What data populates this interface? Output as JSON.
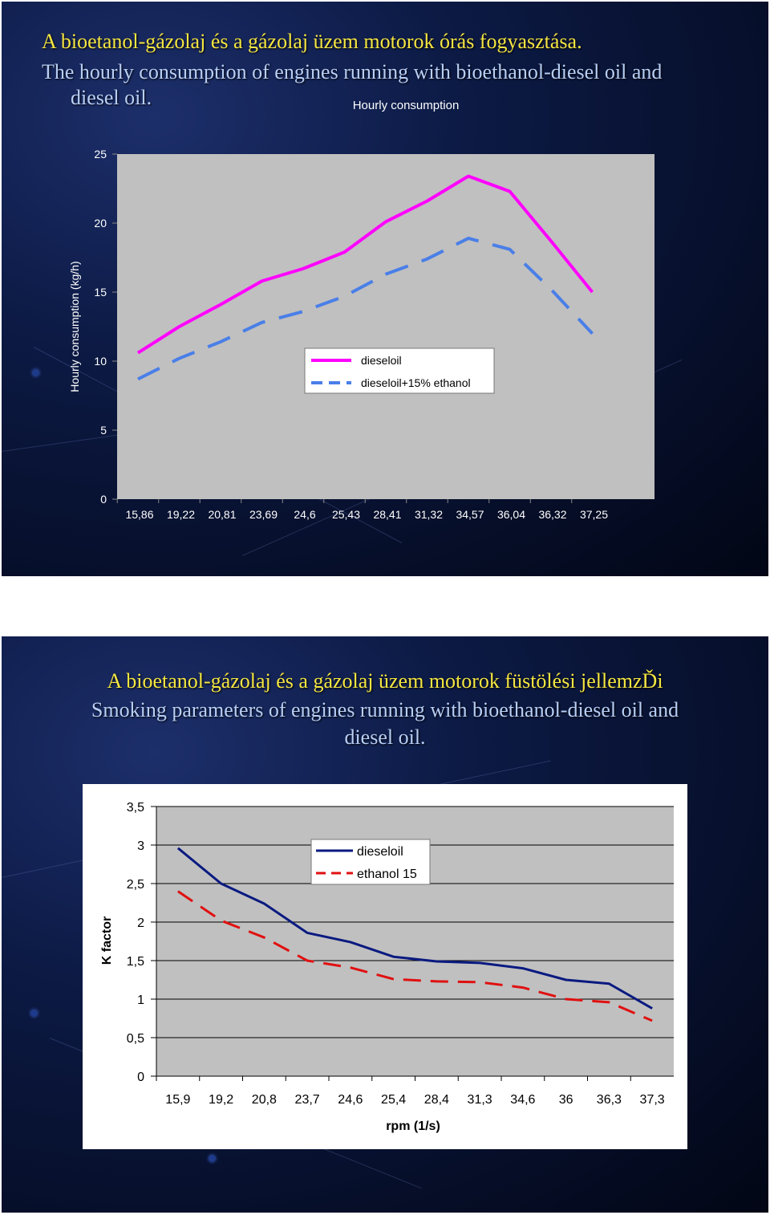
{
  "slide1": {
    "title_hu": "A bioetanol-gázolaj és a gázolaj üzem   motorok órás fogyasztása.",
    "title_en_line1": "The hourly consumption of engines running with bioethanol-diesel oil and",
    "title_en_line2": "diesel oil."
  },
  "slide2": {
    "title_hu": "A bioetanol-gázolaj és a gázolaj üzem   motorok füstölési jellemzĎi",
    "title_en_line1": "Smoking parameters of engines running with bioethanol-diesel oil and",
    "title_en_line2": "diesel oil."
  },
  "chart_data": [
    {
      "type": "line",
      "title": "Hourly consumption",
      "xlabel": "",
      "ylabel": "Hourly consumption (kg/h)",
      "ylim": [
        0,
        25
      ],
      "yticks": [
        "0",
        "5",
        "10",
        "15",
        "20",
        "25"
      ],
      "categories": [
        "15,86",
        "19,22",
        "20,81",
        "23,69",
        "24,6",
        "25,43",
        "28,41",
        "31,32",
        "34,57",
        "36,04",
        "36,32",
        "37,25"
      ],
      "series": [
        {
          "name": "dieseloil",
          "color": "#ff00ff",
          "dash": "solid",
          "values": [
            10.6,
            12.5,
            14.1,
            15.8,
            16.7,
            17.9,
            20.1,
            21.6,
            23.4,
            22.3,
            18.7,
            15.0
          ]
        },
        {
          "name": "dieseloil+15% ethanol",
          "color": "#4a7fe8",
          "dash": "dashed",
          "values": [
            8.7,
            10.2,
            11.4,
            12.8,
            13.6,
            14.7,
            16.3,
            17.4,
            18.9,
            18.1,
            15.2,
            12.0
          ]
        }
      ],
      "legend_position": "center",
      "grid": false,
      "plot_background": "#c0c0c0"
    },
    {
      "type": "line",
      "title": "",
      "xlabel": "rpm (1/s)",
      "ylabel": "K factor",
      "ylim": [
        0,
        3.5
      ],
      "yticks": [
        "0",
        "0,5",
        "1",
        "1,5",
        "2",
        "2,5",
        "3",
        "3,5"
      ],
      "categories": [
        "15,9",
        "19,2",
        "20,8",
        "23,7",
        "24,6",
        "25,4",
        "28,4",
        "31,3",
        "34,6",
        "36",
        "36,3",
        "37,3"
      ],
      "series": [
        {
          "name": "dieseloil",
          "color": "#0a1a80",
          "dash": "solid",
          "values": [
            2.96,
            2.5,
            2.24,
            1.86,
            1.74,
            1.55,
            1.49,
            1.47,
            1.4,
            1.25,
            1.2,
            0.88
          ]
        },
        {
          "name": "ethanol 15",
          "color": "#e01010",
          "dash": "dashed",
          "values": [
            2.4,
            2.02,
            1.8,
            1.5,
            1.41,
            1.26,
            1.23,
            1.22,
            1.15,
            1.0,
            0.96,
            0.72
          ]
        }
      ],
      "legend_position": "top-right",
      "grid": true,
      "plot_background": "#c0c0c0"
    }
  ]
}
